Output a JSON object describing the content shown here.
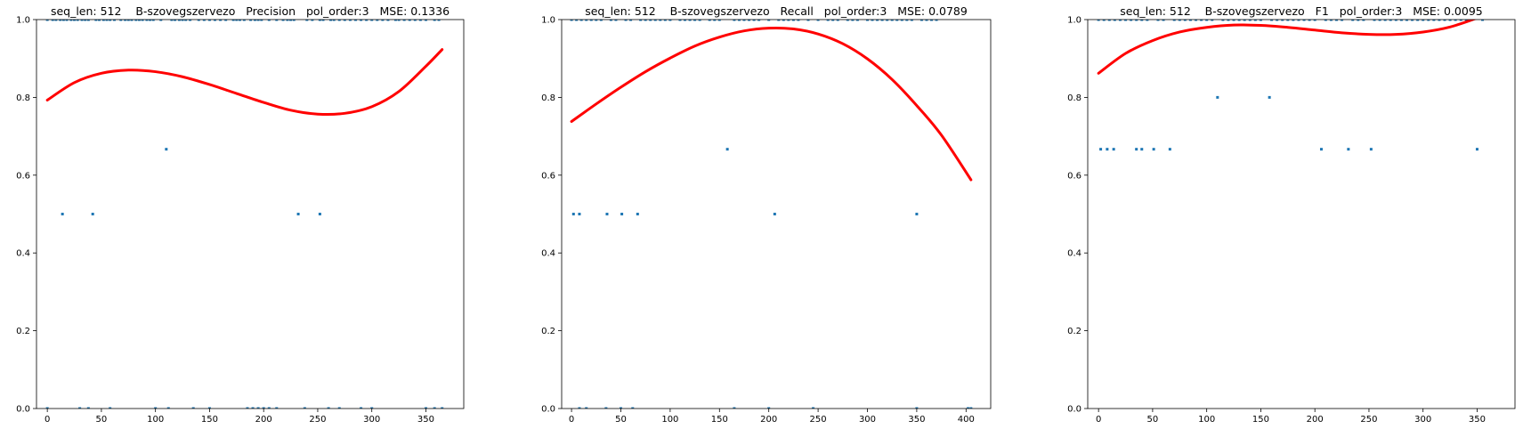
{
  "colors": {
    "points": "#1f77b4",
    "fit": "#ff0000",
    "axes": "#000000",
    "background": "#ffffff"
  },
  "chart_data": [
    {
      "type": "scatter",
      "title": "seq_len: 512    B-szovegszervezo   Precision   pol_order:3   MSE: 0.1336",
      "xlabel": "",
      "ylabel": "",
      "xlim": [
        -10,
        385
      ],
      "ylim": [
        0,
        1
      ],
      "xticks": [
        0,
        50,
        100,
        150,
        200,
        250,
        300,
        350
      ],
      "yticks": [
        0.0,
        0.2,
        0.4,
        0.6,
        0.8,
        1.0
      ],
      "points": {
        "x": [
          0,
          5,
          8,
          12,
          15,
          18,
          22,
          25,
          28,
          32,
          35,
          38,
          45,
          48,
          52,
          55,
          58,
          62,
          68,
          72,
          75,
          78,
          82,
          85,
          88,
          92,
          95,
          98,
          105,
          115,
          118,
          122,
          125,
          128,
          132,
          140,
          145,
          150,
          155,
          160,
          165,
          172,
          175,
          178,
          182,
          188,
          192,
          195,
          198,
          205,
          212,
          218,
          222,
          225,
          228,
          240,
          245,
          252,
          255,
          262,
          265,
          270,
          275,
          280,
          285,
          290,
          295,
          300,
          305,
          310,
          315,
          322,
          325,
          330,
          335,
          340,
          345,
          350,
          358,
          362,
          14,
          42,
          110,
          232,
          252,
          0,
          30,
          38,
          58,
          100,
          112,
          135,
          150,
          185,
          190,
          195,
          200,
          205,
          212,
          238,
          260,
          270,
          290,
          300,
          350,
          358,
          365
        ],
        "y": [
          1,
          1,
          1,
          1,
          1,
          1,
          1,
          1,
          1,
          1,
          1,
          1,
          1,
          1,
          1,
          1,
          1,
          1,
          1,
          1,
          1,
          1,
          1,
          1,
          1,
          1,
          1,
          1,
          1,
          1,
          1,
          1,
          1,
          1,
          1,
          1,
          1,
          1,
          1,
          1,
          1,
          1,
          1,
          1,
          1,
          1,
          1,
          1,
          1,
          1,
          1,
          1,
          1,
          1,
          1,
          1,
          1,
          1,
          1,
          1,
          1,
          1,
          1,
          1,
          1,
          1,
          1,
          1,
          1,
          1,
          1,
          1,
          1,
          1,
          1,
          1,
          1,
          1,
          1,
          1,
          0.5,
          0.5,
          0.6667,
          0.5,
          0.5,
          0,
          0,
          0,
          0,
          0,
          0,
          0,
          0,
          0,
          0,
          0,
          0,
          0,
          0,
          0,
          0,
          0,
          0,
          0,
          0,
          0,
          0
        ]
      },
      "fit": {
        "x": [
          0,
          25,
          50,
          75,
          100,
          125,
          150,
          175,
          200,
          225,
          250,
          275,
          300,
          325,
          350,
          365
        ],
        "y": [
          0.793,
          0.838,
          0.862,
          0.87,
          0.866,
          0.853,
          0.833,
          0.81,
          0.787,
          0.767,
          0.757,
          0.759,
          0.776,
          0.815,
          0.88,
          0.923
        ]
      }
    },
    {
      "type": "scatter",
      "title": "seq_len: 512    B-szovegszervezo   Recall   pol_order:3   MSE: 0.0789",
      "xlabel": "",
      "ylabel": "",
      "xlim": [
        -10,
        425
      ],
      "ylim": [
        0,
        1
      ],
      "xticks": [
        0,
        50,
        100,
        150,
        200,
        250,
        300,
        350,
        400
      ],
      "yticks": [
        0.0,
        0.2,
        0.4,
        0.6,
        0.8,
        1.0
      ],
      "points": {
        "x": [
          0,
          5,
          10,
          15,
          20,
          25,
          30,
          40,
          45,
          55,
          60,
          70,
          75,
          80,
          85,
          90,
          95,
          100,
          110,
          115,
          120,
          125,
          130,
          140,
          145,
          150,
          165,
          170,
          175,
          180,
          185,
          190,
          200,
          210,
          215,
          220,
          225,
          230,
          240,
          250,
          260,
          265,
          270,
          280,
          285,
          290,
          300,
          305,
          310,
          315,
          320,
          325,
          330,
          335,
          340,
          345,
          355,
          360,
          365,
          370,
          2,
          8,
          36,
          51,
          67,
          158,
          206,
          350,
          8,
          15,
          35,
          50,
          62,
          165,
          200,
          245,
          350,
          402,
          405
        ],
        "y": [
          1,
          1,
          1,
          1,
          1,
          1,
          1,
          1,
          1,
          1,
          1,
          1,
          1,
          1,
          1,
          1,
          1,
          1,
          1,
          1,
          1,
          1,
          1,
          1,
          1,
          1,
          1,
          1,
          1,
          1,
          1,
          1,
          1,
          1,
          1,
          1,
          1,
          1,
          1,
          1,
          1,
          1,
          1,
          1,
          1,
          1,
          1,
          1,
          1,
          1,
          1,
          1,
          1,
          1,
          1,
          1,
          1,
          1,
          1,
          1,
          0.5,
          0.5,
          0.5,
          0.5,
          0.5,
          0.6667,
          0.5,
          0.5,
          0,
          0,
          0,
          0,
          0,
          0,
          0,
          0,
          0,
          0,
          0
        ]
      },
      "fit": {
        "x": [
          0,
          25,
          50,
          75,
          100,
          125,
          150,
          175,
          200,
          225,
          250,
          275,
          300,
          325,
          350,
          375,
          405
        ],
        "y": [
          0.738,
          0.783,
          0.826,
          0.866,
          0.901,
          0.932,
          0.955,
          0.971,
          0.978,
          0.976,
          0.963,
          0.938,
          0.899,
          0.846,
          0.779,
          0.703,
          0.588
        ]
      }
    },
    {
      "type": "scatter",
      "title": "seq_len: 512    B-szovegszervezo   F1   pol_order:3   MSE: 0.0095",
      "xlabel": "",
      "ylabel": "",
      "xlim": [
        -10,
        385
      ],
      "ylim": [
        0,
        1
      ],
      "xticks": [
        0,
        50,
        100,
        150,
        200,
        250,
        300,
        350
      ],
      "yticks": [
        0.0,
        0.2,
        0.4,
        0.6,
        0.8,
        1.0
      ],
      "points": {
        "x": [
          0,
          5,
          10,
          15,
          20,
          25,
          30,
          35,
          40,
          45,
          55,
          60,
          70,
          75,
          80,
          85,
          90,
          95,
          100,
          105,
          115,
          120,
          125,
          130,
          135,
          140,
          145,
          150,
          160,
          165,
          170,
          175,
          180,
          185,
          190,
          195,
          200,
          210,
          215,
          220,
          225,
          235,
          240,
          245,
          255,
          260,
          265,
          270,
          275,
          280,
          285,
          290,
          295,
          300,
          305,
          310,
          315,
          320,
          325,
          330,
          335,
          340,
          345,
          355,
          2,
          8,
          14,
          35,
          40,
          51,
          66,
          206,
          231,
          252,
          350,
          110,
          158
        ],
        "y": [
          1,
          1,
          1,
          1,
          1,
          1,
          1,
          1,
          1,
          1,
          1,
          1,
          1,
          1,
          1,
          1,
          1,
          1,
          1,
          1,
          1,
          1,
          1,
          1,
          1,
          1,
          1,
          1,
          1,
          1,
          1,
          1,
          1,
          1,
          1,
          1,
          1,
          1,
          1,
          1,
          1,
          1,
          1,
          1,
          1,
          1,
          1,
          1,
          1,
          1,
          1,
          1,
          1,
          1,
          1,
          1,
          1,
          1,
          1,
          1,
          1,
          1,
          1,
          1,
          0.6667,
          0.6667,
          0.6667,
          0.6667,
          0.6667,
          0.6667,
          0.6667,
          0.6667,
          0.6667,
          0.6667,
          0.6667,
          0.8,
          0.8
        ]
      },
      "fit": {
        "x": [
          0,
          25,
          50,
          75,
          100,
          125,
          150,
          175,
          200,
          225,
          250,
          275,
          300,
          325,
          350,
          365
        ],
        "y": [
          0.862,
          0.913,
          0.946,
          0.968,
          0.98,
          0.986,
          0.985,
          0.98,
          0.973,
          0.966,
          0.962,
          0.962,
          0.968,
          0.981,
          1.004,
          1.021
        ]
      }
    }
  ]
}
